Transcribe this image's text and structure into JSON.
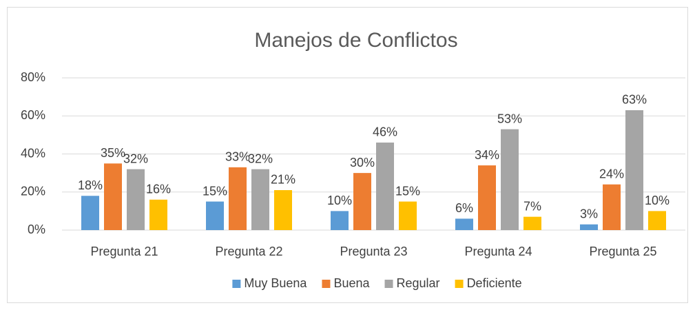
{
  "chart_data": {
    "type": "bar",
    "title": "Manejos de Conflictos",
    "categories": [
      "Pregunta 21",
      "Pregunta 22",
      "Pregunta 23",
      "Pregunta 24",
      "Pregunta 25"
    ],
    "series": [
      {
        "name": "Muy Buena",
        "color": "#5b9bd5",
        "values": [
          18,
          15,
          10,
          6,
          3
        ],
        "value_labels": [
          "18%",
          "15%",
          "10%",
          "6%",
          "3%"
        ]
      },
      {
        "name": "Buena",
        "color": "#ed7d31",
        "values": [
          35,
          33,
          30,
          34,
          24
        ],
        "value_labels": [
          "35%",
          "33%",
          "30%",
          "34%",
          "24%"
        ]
      },
      {
        "name": "Regular",
        "color": "#a5a5a5",
        "values": [
          32,
          32,
          46,
          53,
          63
        ],
        "value_labels": [
          "32%",
          "32%",
          "46%",
          "53%",
          "63%"
        ]
      },
      {
        "name": "Deficiente",
        "color": "#ffc000",
        "values": [
          16,
          21,
          15,
          7,
          10
        ],
        "value_labels": [
          "16%",
          "21%",
          "15%",
          "7%",
          "10%"
        ]
      }
    ],
    "ylim": [
      0,
      80
    ],
    "yticks": [
      {
        "value": 0,
        "label": "0%"
      },
      {
        "value": 20,
        "label": "20%"
      },
      {
        "value": 40,
        "label": "40%"
      },
      {
        "value": 60,
        "label": "60%"
      },
      {
        "value": 80,
        "label": "80%"
      }
    ],
    "grid": true,
    "legend": "bottom"
  }
}
